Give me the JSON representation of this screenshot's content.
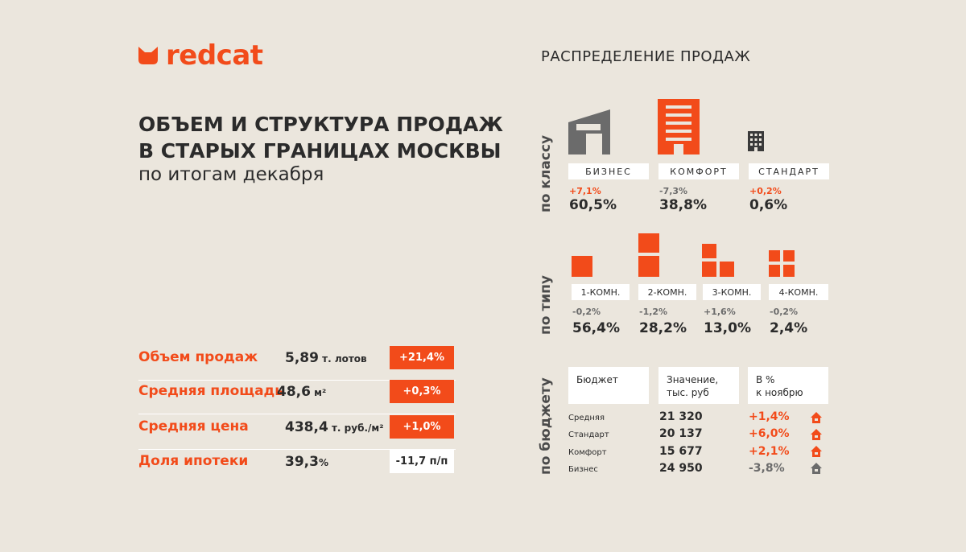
{
  "brand": {
    "name": "redcat",
    "accent": "#f24b1a"
  },
  "header": {
    "title_line1": "ОБЪЕМ И СТРУКТУРА ПРОДАЖ",
    "title_line2": "В СТАРЫХ ГРАНИЦАХ МОСКВЫ",
    "subtitle": "по итогам декабря"
  },
  "metrics": [
    {
      "label": "Объем продаж",
      "value": "5,89",
      "unit": " т. лотов",
      "change": "+21,4%",
      "change_style": "orange"
    },
    {
      "label": "Средняя площадь",
      "value": "48,6",
      "unit": " м²",
      "change": "+0,3%",
      "change_style": "orange"
    },
    {
      "label": "Средняя цена",
      "value": "438,4",
      "unit": " т. руб./м²",
      "change": "+1,0%",
      "change_style": "orange"
    },
    {
      "label": "Доля ипотеки",
      "value": "39,3",
      "unit": "%",
      "change": "-11,7 п/п",
      "change_style": "white"
    }
  ],
  "distribution": {
    "title": "РАСПРЕДЕЛЕНИЕ ПРОДАЖ",
    "by_class": {
      "axis_label": "по классу",
      "items": [
        {
          "label": "БИЗНЕС",
          "change": "+7,1%",
          "change_color": "orange",
          "share": "60,5%",
          "icon": "business-building-icon"
        },
        {
          "label": "КОМФОРТ",
          "change": "-7,3%",
          "change_color": "grey",
          "share": "38,8%",
          "icon": "comfort-building-icon"
        },
        {
          "label": "СТАНДАРТ",
          "change": "+0,2%",
          "change_color": "orange",
          "share": "0,6%",
          "icon": "standard-building-icon"
        }
      ]
    },
    "by_type": {
      "axis_label": "по типу",
      "items": [
        {
          "label": "1-КОМН.",
          "change": "-0,2%",
          "share": "56,4%",
          "icon": "one-room-icon"
        },
        {
          "label": "2-КОМН.",
          "change": "-1,2%",
          "share": "28,2%",
          "icon": "two-room-icon"
        },
        {
          "label": "3-КОМН.",
          "change": "+1,6%",
          "share": "13,0%",
          "icon": "three-room-icon"
        },
        {
          "label": "4-КОМН.",
          "change": "-0,2%",
          "share": "2,4%",
          "icon": "four-room-icon"
        }
      ]
    },
    "by_budget": {
      "axis_label": "по бюджету",
      "headers": [
        "Бюджет",
        "Значение, тыс. руб",
        "В % к ноябрю"
      ],
      "header_lines": [
        [
          "Бюджет"
        ],
        [
          "Значение,",
          "тыс. руб"
        ],
        [
          "В %",
          "к ноябрю"
        ]
      ],
      "rows": [
        {
          "label": "Средняя",
          "value": "21 320",
          "pct": "+1,4%",
          "trend": "up",
          "color": "#f24b1a"
        },
        {
          "label": "Стандарт",
          "value": "20 137",
          "pct": "+6,0%",
          "trend": "up",
          "color": "#f24b1a"
        },
        {
          "label": "Комфорт",
          "value": "15 677",
          "pct": "+2,1%",
          "trend": "up",
          "color": "#f24b1a"
        },
        {
          "label": "Бизнес",
          "value": "24 950",
          "pct": "-3,8%",
          "trend": "down",
          "color": "#6b6b6b"
        }
      ]
    }
  }
}
